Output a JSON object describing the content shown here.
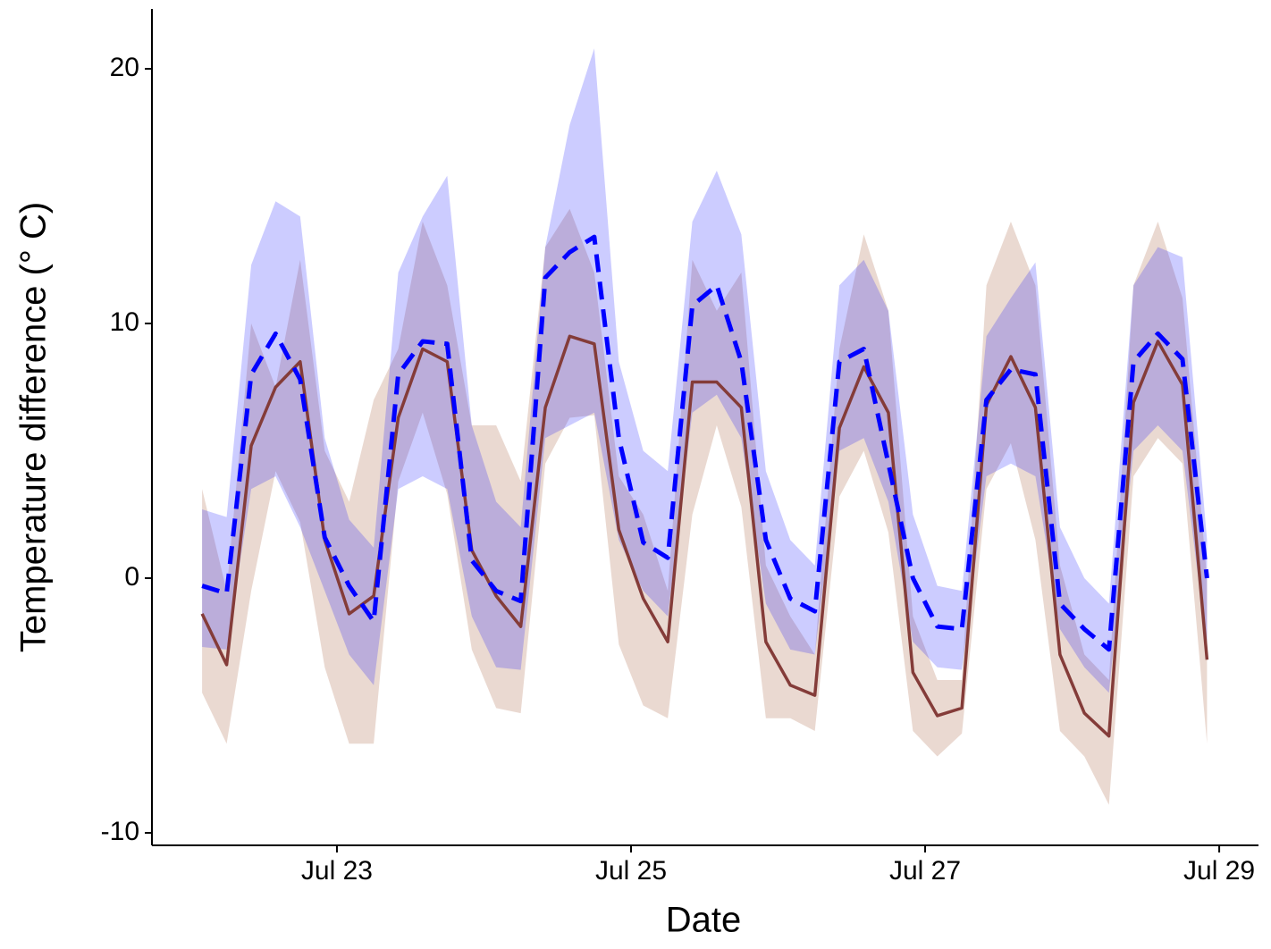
{
  "chart_data": {
    "type": "line",
    "x_label": "Date",
    "y_label": "Temperature difference (° C)",
    "x": [
      22.083,
      22.25,
      22.417,
      22.583,
      22.75,
      22.917,
      23.083,
      23.25,
      23.417,
      23.583,
      23.75,
      23.917,
      24.083,
      24.25,
      24.417,
      24.583,
      24.75,
      24.917,
      25.083,
      25.25,
      25.417,
      25.583,
      25.75,
      25.917,
      26.083,
      26.25,
      26.417,
      26.583,
      26.75,
      26.917,
      27.083,
      27.25,
      27.417,
      27.583,
      27.75,
      27.917,
      28.083,
      28.25,
      28.417,
      28.583,
      28.75,
      28.917
    ],
    "series": [
      {
        "color": "#843c39",
        "band_color": "#a0522d",
        "dashed": false,
        "values": [
          -1.4,
          -3.4,
          5.2,
          7.5,
          8.5,
          1.5,
          -1.4,
          -0.7,
          6.3,
          9.0,
          8.5,
          1.1,
          -0.7,
          -1.9,
          6.7,
          9.5,
          9.2,
          1.9,
          -0.8,
          -2.5,
          7.7,
          7.7,
          6.7,
          -2.5,
          -4.2,
          -4.6,
          5.9,
          8.3,
          6.5,
          -3.7,
          -5.4,
          -5.1,
          6.8,
          8.7,
          6.7,
          -3.0,
          -5.3,
          -6.2,
          6.9,
          9.3,
          7.6,
          -3.2
        ],
        "lower": [
          -4.5,
          -6.5,
          -0.5,
          4.2,
          2.2,
          -3.5,
          -6.5,
          -6.5,
          3.8,
          6.5,
          3.3,
          -2.8,
          -5.1,
          -5.3,
          4.5,
          6.3,
          6.4,
          -2.6,
          -5.0,
          -5.5,
          2.5,
          6.0,
          2.8,
          -5.5,
          -5.5,
          -6.0,
          3.2,
          5.0,
          1.8,
          -6.0,
          -7.0,
          -6.1,
          3.5,
          5.3,
          1.5,
          -6.0,
          -7.0,
          -8.9,
          4.0,
          5.5,
          4.5,
          -6.5
        ],
        "upper": [
          3.5,
          -0.5,
          10.0,
          7.5,
          12.5,
          5.0,
          3.0,
          7.0,
          9.0,
          14.0,
          11.5,
          6.0,
          6.0,
          3.8,
          13.0,
          14.5,
          12.0,
          4.0,
          2.5,
          -0.5,
          12.5,
          10.5,
          12.0,
          0.5,
          -1.5,
          -3.0,
          9.0,
          13.5,
          10.5,
          -1.5,
          -4.0,
          -4.0,
          11.5,
          14.0,
          11.5,
          0.5,
          -3.0,
          -4.0,
          11.5,
          14.0,
          11.0,
          0.0
        ]
      },
      {
        "color": "#0000ff",
        "band_color": "#0000ff",
        "dashed": true,
        "values": [
          -0.3,
          -0.6,
          8.0,
          9.6,
          7.8,
          1.6,
          -0.3,
          -1.7,
          8.0,
          9.3,
          9.2,
          0.7,
          -0.5,
          -0.9,
          11.8,
          12.8,
          13.4,
          5.5,
          1.4,
          0.8,
          10.7,
          11.5,
          8.5,
          1.5,
          -0.8,
          -1.3,
          8.5,
          9.0,
          4.5,
          0.0,
          -1.9,
          -2.0,
          7.0,
          8.2,
          8.0,
          -1.0,
          -2.0,
          -2.8,
          8.5,
          9.6,
          8.6,
          0.0
        ],
        "lower": [
          -2.7,
          -2.8,
          3.5,
          4.0,
          2.0,
          -0.5,
          -3.0,
          -4.2,
          3.5,
          4.0,
          3.5,
          -1.5,
          -3.5,
          -3.6,
          5.5,
          6.0,
          6.5,
          1.5,
          -0.5,
          -1.5,
          6.5,
          7.2,
          5.5,
          -1.0,
          -2.8,
          -3.0,
          5.0,
          5.5,
          3.0,
          -2.5,
          -3.5,
          -3.6,
          4.0,
          4.5,
          4.0,
          -2.0,
          -3.5,
          -4.5,
          5.0,
          6.0,
          5.0,
          -2.8
        ],
        "upper": [
          2.7,
          2.4,
          12.3,
          14.8,
          14.2,
          5.5,
          2.3,
          1.2,
          12.0,
          14.2,
          15.8,
          6.0,
          3.0,
          2.0,
          13.0,
          17.8,
          20.8,
          8.5,
          5.0,
          4.2,
          14.0,
          16.0,
          13.5,
          4.2,
          1.5,
          0.5,
          11.5,
          12.5,
          10.5,
          2.5,
          -0.3,
          -0.5,
          9.5,
          11.0,
          12.4,
          2.0,
          0.0,
          -1.0,
          11.5,
          13.0,
          12.6,
          1.5
        ]
      }
    ],
    "xlim": [
      21.742,
      29.267
    ],
    "ylim": [
      -10.49,
      22.35
    ],
    "xticks": [
      {
        "value": 23,
        "label": "Jul 23"
      },
      {
        "value": 25,
        "label": "Jul 25"
      },
      {
        "value": 27,
        "label": "Jul 27"
      },
      {
        "value": 29,
        "label": "Jul 29"
      }
    ],
    "yticks": [
      -10,
      0,
      10,
      20
    ],
    "grid": false
  }
}
